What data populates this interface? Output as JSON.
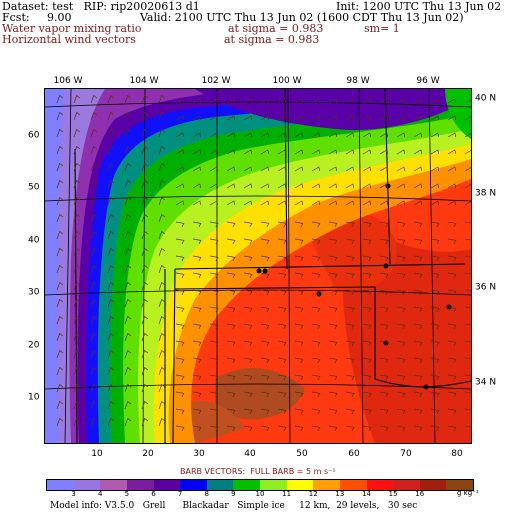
{
  "header": {
    "dataset": "Dataset: test   RIP: rip20020613 d1",
    "init": "Init: 1200 UTC Thu 13 Jun 02",
    "fcst": "Fcst:     9.00",
    "valid": "Valid: 2100 UTC Thu 13 Jun 02 (1600 CDT Thu 13 Jun 02)",
    "field1": "Water vapor mixing ratio",
    "field1_level": "at sigma = 0.983",
    "field1_sm": "sm= 1",
    "field2": "Horizontal wind vectors",
    "field2_level": "at sigma = 0.983"
  },
  "lon_labels": [
    "106 W",
    "104 W",
    "102 W",
    "100 W",
    "98 W",
    "96 W"
  ],
  "lat_labels": [
    "40 N",
    "38 N",
    "36 N",
    "34 N"
  ],
  "x_ticks": [
    "10",
    "20",
    "30",
    "40",
    "50",
    "60",
    "70",
    "80"
  ],
  "y_ticks": [
    "60",
    "50",
    "40",
    "30",
    "20",
    "10"
  ],
  "barb_note": "BARB VECTORS:  FULL BARB = 5 m s⁻¹",
  "colorbar": {
    "ticks": [
      "3",
      "4",
      "5",
      "6",
      "7",
      "8",
      "9",
      "10",
      "11",
      "12",
      "13",
      "14",
      "15",
      "16"
    ],
    "unit": "g kg⁻¹",
    "colors": [
      "#7f7fff",
      "#9a74e0",
      "#b05ab0",
      "#7a1e9e",
      "#5a00a0",
      "#0000ff",
      "#008080",
      "#00c000",
      "#90ee20",
      "#ffff00",
      "#ffa000",
      "#ff5000",
      "#ff1010",
      "#d02020",
      "#a02010",
      "#8b4513"
    ]
  },
  "model_info": "Model info: V3.5.0   Grell      Blackadar   Simple ice     12 km,  29 levels,   30 sec",
  "map": {
    "field": "water vapor mixing ratio with wind barbs, Great Plains domain",
    "dots": 8
  }
}
